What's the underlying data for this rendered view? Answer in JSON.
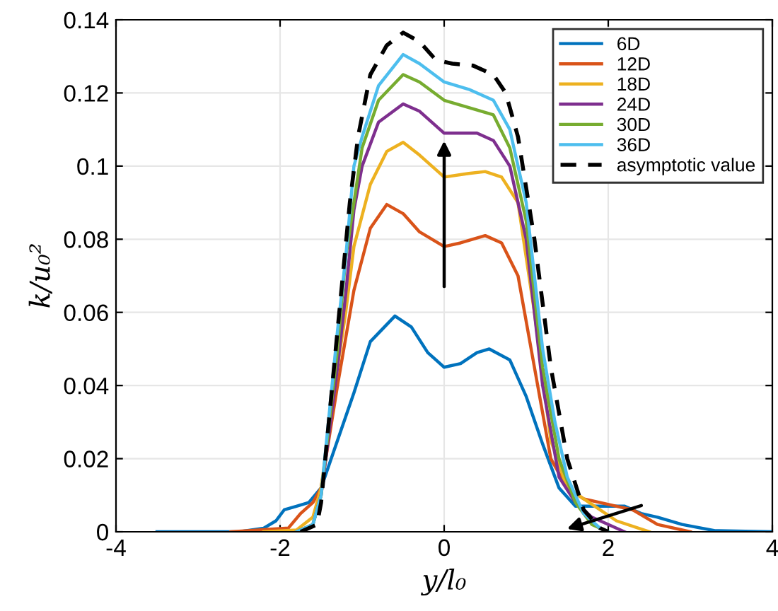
{
  "chart_data": {
    "type": "line",
    "xlabel": "y/l₀",
    "ylabel": "k/u₀²",
    "xlim": [
      -4,
      4
    ],
    "ylim": [
      0,
      0.14
    ],
    "xticks": [
      -4,
      -2,
      0,
      2,
      4
    ],
    "yticks": [
      0,
      0.02,
      0.04,
      0.06,
      0.08,
      {
        "value": 0.1,
        "label": "0.1"
      },
      0.12,
      0.14
    ],
    "grid": true,
    "legend": "top right",
    "line_style": "solid",
    "marker": "none",
    "series": [
      {
        "name": "6D",
        "color": "#0072bd",
        "x": [
          -3.5,
          -2.5,
          -2.2,
          -2.05,
          -1.95,
          -1.8,
          -1.65,
          -1.5,
          -1.3,
          -1.1,
          -0.9,
          -0.6,
          -0.4,
          -0.2,
          0,
          0.2,
          0.4,
          0.55,
          0.8,
          1.0,
          1.2,
          1.4,
          1.6,
          1.8,
          2.0,
          2.2,
          2.4,
          2.6,
          2.9,
          3.3,
          4.0
        ],
        "values": [
          0,
          0,
          0.001,
          0.003,
          0.006,
          0.007,
          0.008,
          0.012,
          0.025,
          0.038,
          0.052,
          0.059,
          0.056,
          0.049,
          0.045,
          0.046,
          0.049,
          0.05,
          0.047,
          0.037,
          0.024,
          0.012,
          0.007,
          0.007,
          0.007,
          0.007,
          0.005,
          0.004,
          0.002,
          0.0003,
          0
        ]
      },
      {
        "name": "12D",
        "color": "#d95319",
        "x": [
          -2.6,
          -1.9,
          -1.75,
          -1.6,
          -1.5,
          -1.3,
          -1.1,
          -0.9,
          -0.7,
          -0.5,
          -0.3,
          0,
          0.2,
          0.5,
          0.7,
          0.9,
          1.1,
          1.3,
          1.5,
          1.7,
          1.9,
          2.1,
          2.3,
          2.6,
          3.0
        ],
        "values": [
          0,
          0.001,
          0.005,
          0.008,
          0.012,
          0.04,
          0.066,
          0.083,
          0.0895,
          0.087,
          0.082,
          0.078,
          0.079,
          0.081,
          0.079,
          0.07,
          0.045,
          0.02,
          0.012,
          0.009,
          0.008,
          0.007,
          0.006,
          0.002,
          0
        ]
      },
      {
        "name": "18D",
        "color": "#edb120",
        "x": [
          -2.2,
          -1.8,
          -1.6,
          -1.5,
          -1.3,
          -1.2,
          -1.1,
          -0.9,
          -0.7,
          -0.5,
          -0.3,
          0,
          0.3,
          0.5,
          0.7,
          0.9,
          1.1,
          1.3,
          1.5,
          1.7,
          1.9,
          2.1,
          2.5
        ],
        "values": [
          0,
          0.0005,
          0.004,
          0.012,
          0.045,
          0.06,
          0.078,
          0.095,
          0.104,
          0.1065,
          0.103,
          0.097,
          0.098,
          0.0985,
          0.097,
          0.09,
          0.06,
          0.025,
          0.012,
          0.009,
          0.006,
          0.003,
          0
        ]
      },
      {
        "name": "24D",
        "color": "#7e2f8e",
        "x": [
          -1.8,
          -1.6,
          -1.5,
          -1.3,
          -1.2,
          -1.1,
          -1.0,
          -0.8,
          -0.5,
          -0.3,
          0,
          0.2,
          0.4,
          0.6,
          0.8,
          1.0,
          1.2,
          1.4,
          1.6,
          1.8,
          2.2
        ],
        "values": [
          0,
          0.002,
          0.01,
          0.045,
          0.065,
          0.088,
          0.1,
          0.112,
          0.117,
          0.115,
          0.109,
          0.109,
          0.109,
          0.107,
          0.1,
          0.08,
          0.04,
          0.015,
          0.008,
          0.004,
          0
        ]
      },
      {
        "name": "30D",
        "color": "#77ac30",
        "x": [
          -1.8,
          -1.6,
          -1.5,
          -1.3,
          -1.2,
          -1.1,
          -1.0,
          -0.8,
          -0.5,
          -0.3,
          0,
          0.3,
          0.6,
          0.8,
          1.0,
          1.2,
          1.4,
          1.6,
          1.8,
          2.0
        ],
        "values": [
          0,
          0.002,
          0.01,
          0.05,
          0.075,
          0.09,
          0.105,
          0.118,
          0.125,
          0.123,
          0.118,
          0.116,
          0.114,
          0.105,
          0.085,
          0.045,
          0.02,
          0.008,
          0.002,
          0
        ]
      },
      {
        "name": "36D",
        "color": "#4dbeee",
        "x": [
          -1.8,
          -1.6,
          -1.5,
          -1.3,
          -1.2,
          -1.1,
          -1.0,
          -0.8,
          -0.5,
          -0.3,
          0,
          0.3,
          0.6,
          0.8,
          1.0,
          1.2,
          1.35,
          1.5,
          1.7,
          1.9,
          2.0
        ],
        "values": [
          0,
          0.002,
          0.01,
          0.055,
          0.075,
          0.1,
          0.108,
          0.122,
          0.1305,
          0.128,
          0.123,
          0.121,
          0.118,
          0.11,
          0.09,
          0.05,
          0.03,
          0.015,
          0.005,
          0.001,
          0
        ]
      },
      {
        "name": "asymptotic value",
        "color": "#000000",
        "line_style": "dashed",
        "x": [
          -1.75,
          -1.55,
          -1.5,
          -1.3,
          -1.15,
          -1.05,
          -0.9,
          -0.7,
          -0.5,
          -0.3,
          -0.1,
          0.1,
          0.35,
          0.6,
          0.75,
          0.9,
          1.1,
          1.3,
          1.5,
          1.7,
          1.9,
          2.0
        ],
        "values": [
          0,
          0.002,
          0.008,
          0.055,
          0.09,
          0.108,
          0.125,
          0.133,
          0.1365,
          0.134,
          0.129,
          0.128,
          0.1275,
          0.125,
          0.12,
          0.108,
          0.08,
          0.045,
          0.02,
          0.006,
          0.001,
          0
        ]
      }
    ]
  }
}
